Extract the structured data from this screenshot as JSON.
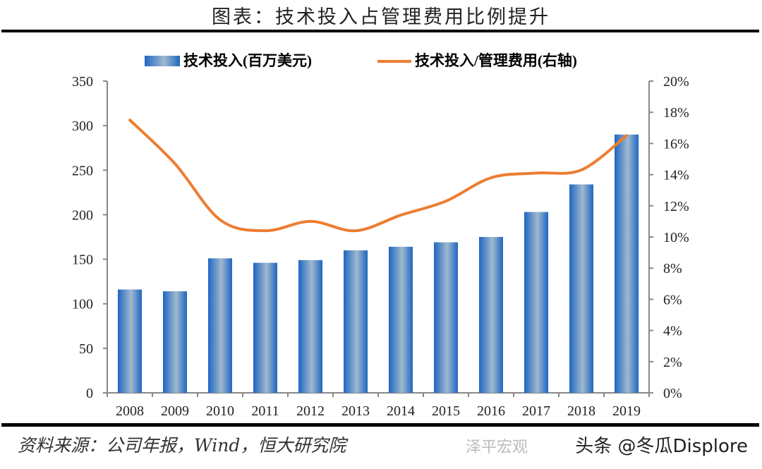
{
  "title": "图表：技术投入占管理费用比例提升",
  "source": "资料来源：公司年报，Wind，恒大研究院",
  "watermark": "头条 @冬瓜Displore",
  "watermark2": "泽平宏观",
  "colors": {
    "bar": "#2a6cbf",
    "bar_light": "#9db8d0",
    "line": "#ed7d31"
  },
  "chart_data": {
    "type": "bar+line",
    "categories": [
      "2008",
      "2009",
      "2010",
      "2011",
      "2012",
      "2013",
      "2014",
      "2015",
      "2016",
      "2017",
      "2018",
      "2019"
    ],
    "series": [
      {
        "name": "技术投入(百万美元)",
        "type": "bar",
        "axis": "left",
        "values": [
          116,
          114,
          151,
          146,
          149,
          160,
          164,
          169,
          175,
          203,
          234,
          290
        ]
      },
      {
        "name": "技术投入/管理费用(右轴)",
        "type": "line",
        "axis": "right",
        "values": [
          17.5,
          14.7,
          11.1,
          10.4,
          11.0,
          10.4,
          11.4,
          12.3,
          13.8,
          14.1,
          14.3,
          16.5
        ]
      }
    ],
    "ylim_left": [
      0,
      350
    ],
    "yticks_left": [
      "0",
      "50",
      "100",
      "150",
      "200",
      "250",
      "300",
      "350"
    ],
    "ylim_right": [
      0,
      20
    ],
    "yticks_right": [
      "0%",
      "2%",
      "4%",
      "6%",
      "8%",
      "10%",
      "12%",
      "14%",
      "16%",
      "18%",
      "20%"
    ],
    "legend_position": "top",
    "grid": false
  }
}
